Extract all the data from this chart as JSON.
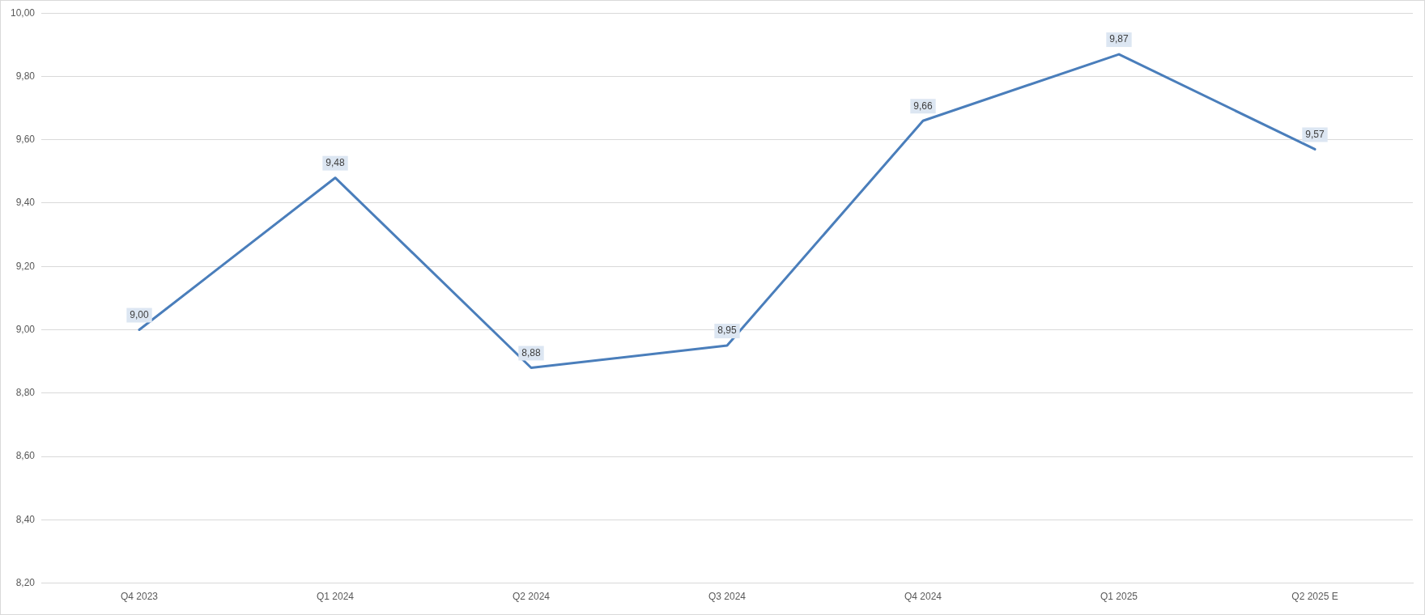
{
  "chart_data": {
    "type": "line",
    "categories": [
      "Q4 2023",
      "Q1 2024",
      "Q2 2024",
      "Q3 2024",
      "Q4 2024",
      "Q1 2025",
      "Q2 2025 E"
    ],
    "series": [
      {
        "color": "#4a7ebb",
        "values": [
          9.0,
          9.48,
          8.88,
          8.95,
          9.66,
          9.87,
          9.57
        ],
        "value_labels": [
          "9,00",
          "9,48",
          "8,88",
          "8,95",
          "9,66",
          "9,87",
          "9,57"
        ]
      }
    ],
    "ylim": [
      8.2,
      10
    ],
    "yticks": [
      {
        "value": 8.2,
        "label": "8,20"
      },
      {
        "value": 8.4,
        "label": "8,40"
      },
      {
        "value": 8.6,
        "label": "8,60"
      },
      {
        "value": 8.8,
        "label": "8,80"
      },
      {
        "value": 9,
        "label": "9,00"
      },
      {
        "value": 9.2,
        "label": "9,20"
      },
      {
        "value": 9.4,
        "label": "9,40"
      },
      {
        "value": 9.6,
        "label": "9,60"
      },
      {
        "value": 9.8,
        "label": "9,80"
      },
      {
        "value": 10,
        "label": "10,00"
      }
    ],
    "grid": "y",
    "legend": false,
    "marker": "none",
    "line_style": "solid"
  }
}
